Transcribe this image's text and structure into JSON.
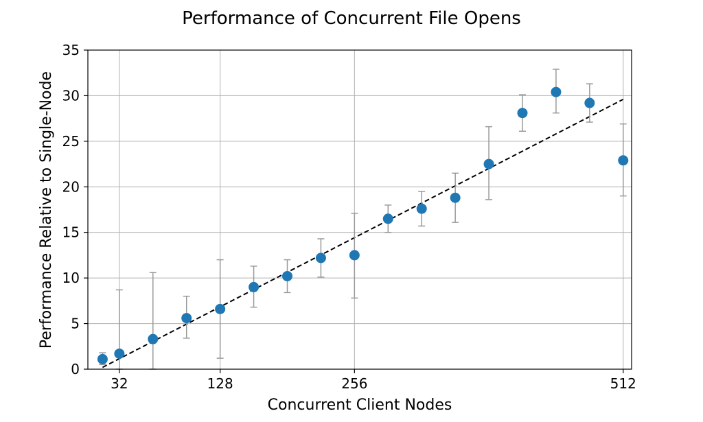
{
  "chart_data": {
    "type": "scatter",
    "title": "Performance of Concurrent File Opens",
    "xlabel": "Concurrent Client Nodes",
    "ylabel": "Performance Relative to Single-Node",
    "xlim": [
      2,
      520
    ],
    "ylim": [
      0,
      35
    ],
    "xticks": [
      32,
      128,
      256,
      512
    ],
    "yticks": [
      0,
      5,
      10,
      15,
      20,
      25,
      30,
      35
    ],
    "grid": true,
    "point_color": "#1f77b4",
    "errorbar_color": "#999999",
    "fit_line": {
      "style": "dashed",
      "color": "#000000",
      "x": [
        16,
        512
      ],
      "y": [
        0.2,
        29.6
      ]
    },
    "series": [
      {
        "x": [
          16,
          32,
          64,
          96,
          128,
          160,
          192,
          224,
          256,
          288,
          320,
          352,
          384,
          416,
          448,
          480,
          512
        ],
        "y": [
          1.1,
          1.7,
          3.3,
          5.6,
          6.6,
          9.0,
          10.2,
          12.2,
          12.5,
          16.5,
          17.6,
          18.8,
          22.5,
          28.1,
          30.4,
          29.2,
          22.9
        ],
        "ylow": [
          0.5,
          0.0,
          0.0,
          3.4,
          1.2,
          6.8,
          8.4,
          10.1,
          7.8,
          15.0,
          15.7,
          16.1,
          18.6,
          26.1,
          28.1,
          27.1,
          19.0
        ],
        "yhigh": [
          1.8,
          8.7,
          10.6,
          8.0,
          12.0,
          11.3,
          12.0,
          14.3,
          17.1,
          18.0,
          19.5,
          21.5,
          26.6,
          30.1,
          32.9,
          31.3,
          26.9
        ]
      }
    ]
  }
}
